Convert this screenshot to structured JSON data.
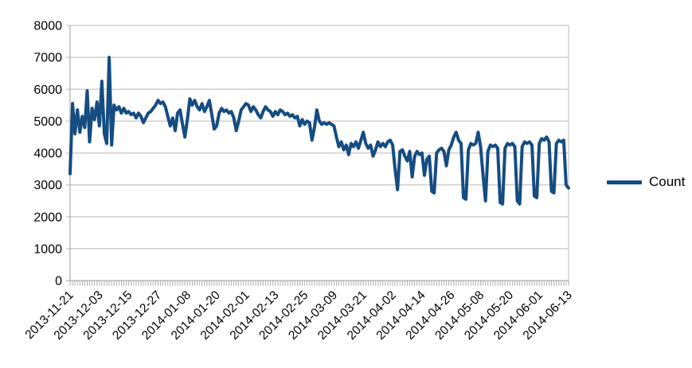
{
  "chart_data": {
    "type": "line",
    "title": "",
    "xlabel": "",
    "ylabel": "",
    "ylim": [
      0,
      8000
    ],
    "y_tick_step": 1000,
    "y_tick_labels": [
      "0",
      "1000",
      "2000",
      "3000",
      "4000",
      "5000",
      "6000",
      "7000",
      "8000"
    ],
    "x_start_date": "2013-11-21",
    "x_end_date": "2014-06-13",
    "x_tick_interval_days": 12,
    "x_tick_labels": [
      "2013-11-21",
      "2013-12-03",
      "2013-12-15",
      "2013-12-27",
      "2014-01-08",
      "2014-01-20",
      "2014-02-01",
      "2014-02-13",
      "2014-02-25",
      "2014-03-09",
      "2014-03-21",
      "2014-04-02",
      "2014-04-14",
      "2014-04-26",
      "2014-05-08",
      "2014-05-20",
      "2014-06-01",
      "2014-06-13"
    ],
    "grid": "horizontal",
    "legend_position": "right",
    "series": [
      {
        "name": "Count",
        "color": "#154C82",
        "values": [
          3350,
          5550,
          4600,
          5350,
          4650,
          5150,
          4800,
          5950,
          4350,
          5400,
          5050,
          5600,
          4850,
          6250,
          4600,
          4300,
          7000,
          4250,
          5500,
          5350,
          5450,
          5250,
          5400,
          5250,
          5300,
          5200,
          5250,
          5100,
          5250,
          5150,
          4950,
          5100,
          5250,
          5300,
          5400,
          5500,
          5650,
          5550,
          5600,
          5450,
          5150,
          4850,
          5100,
          4700,
          5250,
          5350,
          4900,
          4500,
          5050,
          5700,
          5500,
          5650,
          5450,
          5350,
          5550,
          5300,
          5450,
          5650,
          5200,
          4750,
          4850,
          5250,
          5400,
          5300,
          5350,
          5250,
          5300,
          5100,
          4700,
          5000,
          5350,
          5450,
          5550,
          5500,
          5300,
          5450,
          5350,
          5200,
          5100,
          5300,
          5450,
          5350,
          5300,
          5150,
          5300,
          5200,
          5350,
          5300,
          5200,
          5250,
          5150,
          5200,
          5100,
          5150,
          4850,
          5050,
          4900,
          5000,
          4950,
          4400,
          4800,
          5350,
          5000,
          4900,
          4950,
          4900,
          4950,
          4900,
          4850,
          4500,
          4200,
          4350,
          4100,
          4250,
          3950,
          4300,
          4200,
          4350,
          4150,
          4400,
          4650,
          4300,
          4150,
          4250,
          3900,
          4100,
          4350,
          4200,
          4300,
          4200,
          4350,
          4400,
          4250,
          3500,
          2850,
          4050,
          4100,
          3900,
          3750,
          4050,
          3250,
          3900,
          4050,
          3950,
          4000,
          3300,
          3800,
          3900,
          2800,
          2750,
          4000,
          4100,
          4150,
          4050,
          3600,
          4100,
          4250,
          4500,
          4650,
          4400,
          4300,
          2600,
          2550,
          4100,
          4300,
          4250,
          4300,
          4650,
          4200,
          3300,
          2500,
          4050,
          4250,
          4200,
          4250,
          4150,
          2450,
          2400,
          4150,
          4300,
          4250,
          4300,
          4200,
          2500,
          2400,
          4200,
          4350,
          4300,
          4350,
          4250,
          2650,
          2600,
          4300,
          4450,
          4400,
          4500,
          4350,
          2800,
          2750,
          4300,
          4400,
          4350,
          4400,
          3000,
          2900
        ]
      }
    ]
  },
  "colors": {
    "series": "#154C82",
    "grid": "#C6C6C6",
    "axis": "#ADADAD",
    "text": "#000000",
    "background": "#FFFFFF"
  },
  "legend": {
    "label": "Count"
  }
}
